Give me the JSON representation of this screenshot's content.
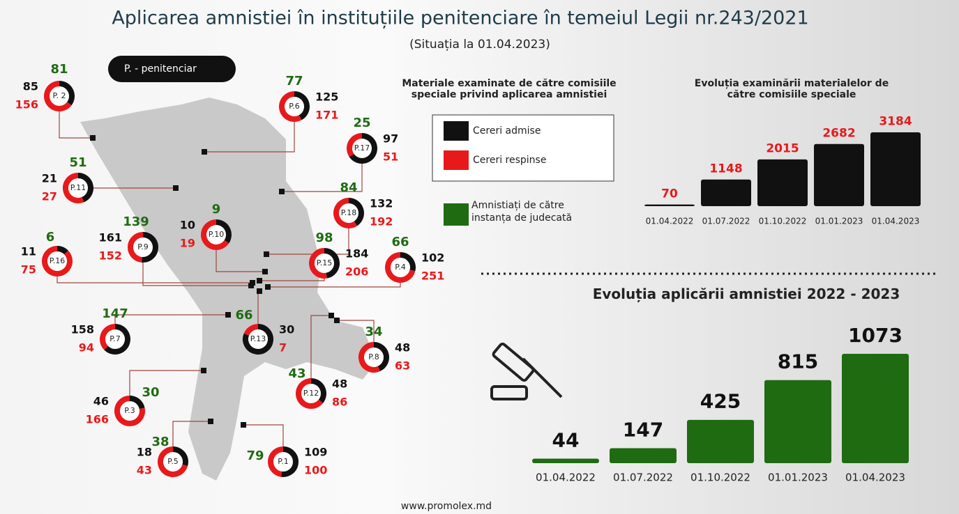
{
  "header": {
    "title": "Aplicarea amnistiei în instituțiile penitenciare  în temeiul Legii nr.243/2021",
    "subtitle": "(Situația la 01.04.2023)"
  },
  "map": {
    "key": "P. - penitenciar",
    "legend": {
      "title": "Materiale examinate de către comisiile speciale privind aplicarea amnistiei",
      "admitted": "Cereri admise",
      "rejected": "Cereri respinse",
      "amnestied": "Amnistiați de către instanța de judecată",
      "admitted_color": "#111111",
      "rejected_color": "#e8191b",
      "amnestied_color": "#1f6b12"
    },
    "items": [
      {
        "name": "P. 2",
        "admitted": 85,
        "rejected": 156,
        "amnestied": 81
      },
      {
        "name": "P.6",
        "admitted": 125,
        "rejected": 171,
        "amnestied": 77
      },
      {
        "name": "P.17",
        "admitted": 97,
        "rejected": 51,
        "amnestied": 25
      },
      {
        "name": "P.11",
        "admitted": 21,
        "rejected": 27,
        "amnestied": 51
      },
      {
        "name": "P.18",
        "admitted": 132,
        "rejected": 192,
        "amnestied": 84
      },
      {
        "name": "P.10",
        "admitted": 10,
        "rejected": 19,
        "amnestied": 9
      },
      {
        "name": "P.9",
        "admitted": 161,
        "rejected": 152,
        "amnestied": 139
      },
      {
        "name": "P.16",
        "admitted": 11,
        "rejected": 75,
        "amnestied": 6
      },
      {
        "name": "P.15",
        "admitted": 184,
        "rejected": 206,
        "amnestied": 98
      },
      {
        "name": "P.4",
        "admitted": 102,
        "rejected": 251,
        "amnestied": 66
      },
      {
        "name": "P.7",
        "admitted": 158,
        "rejected": 94,
        "amnestied": 147
      },
      {
        "name": "P.13",
        "admitted": 30,
        "rejected": 7,
        "amnestied": 66
      },
      {
        "name": "P.8",
        "admitted": 48,
        "rejected": 63,
        "amnestied": 34
      },
      {
        "name": "P.12",
        "admitted": 48,
        "rejected": 86,
        "amnestied": 43
      },
      {
        "name": "P.3",
        "admitted": 46,
        "rejected": 166,
        "amnestied": 30
      },
      {
        "name": "P.5",
        "admitted": 18,
        "rejected": 43,
        "amnestied": 38
      },
      {
        "name": "P.1",
        "admitted": 109,
        "rejected": 100,
        "amnestied": 79
      }
    ]
  },
  "chart_data": [
    {
      "type": "bar",
      "title": "Evoluția examinării materialelor de către comisiile speciale",
      "categories": [
        "01.04.2022",
        "01.07.2022",
        "01.10.2022",
        "01.01.2023",
        "01.04.2023"
      ],
      "values": [
        70,
        1148,
        2015,
        2682,
        3184
      ],
      "color": "#111111",
      "label_color": "#e8191b"
    },
    {
      "type": "bar",
      "title": "Evoluția aplicării amnistiei  2022 - 2023",
      "categories": [
        "01.04.2022",
        "01.07.2022",
        "01.10.2022",
        "01.01.2023",
        "01.04.2023"
      ],
      "values": [
        44,
        147,
        425,
        815,
        1073
      ],
      "color": "#1f6b12",
      "label_color": "#111111"
    }
  ],
  "footer": "www.promolex.md"
}
